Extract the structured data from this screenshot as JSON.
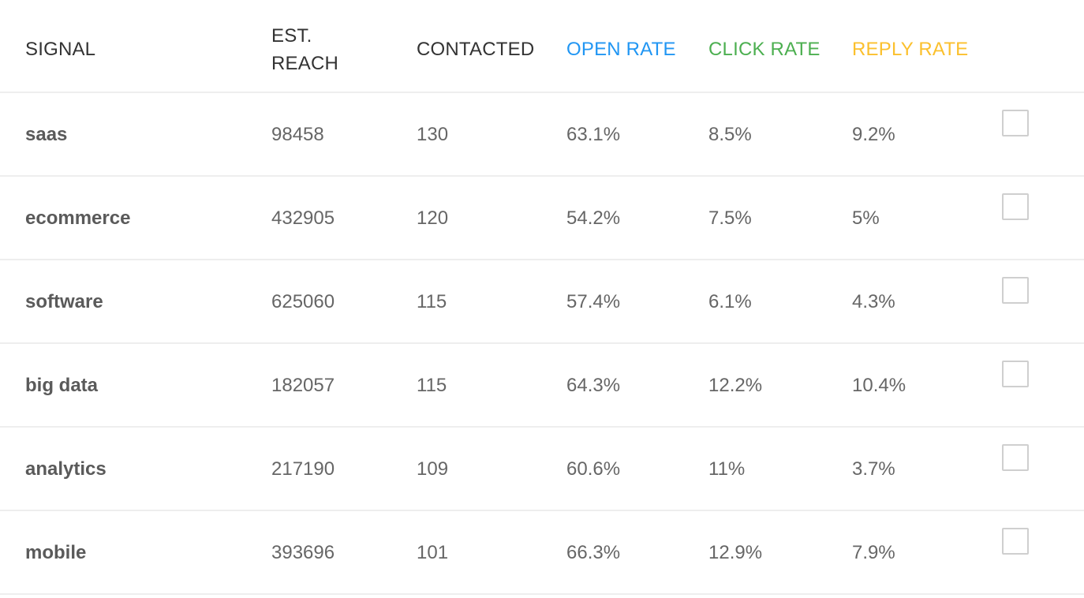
{
  "columns": {
    "signal": "SIGNAL",
    "est_reach_line1": "EST.",
    "est_reach_line2": "REACH",
    "contacted": "CONTACTED",
    "open_rate": "OPEN RATE",
    "click_rate": "CLICK RATE",
    "reply_rate": "REPLY RATE"
  },
  "colors": {
    "open_rate": "#2196f3",
    "click_rate": "#4caf50",
    "reply_rate": "#fbc02d"
  },
  "rows": [
    {
      "signal": "saas",
      "est_reach": "98458",
      "contacted": "130",
      "open_rate": "63.1%",
      "click_rate": "8.5%",
      "reply_rate": "9.2%",
      "checked": false
    },
    {
      "signal": "ecommerce",
      "est_reach": "432905",
      "contacted": "120",
      "open_rate": "54.2%",
      "click_rate": "7.5%",
      "reply_rate": "5%",
      "checked": false
    },
    {
      "signal": "software",
      "est_reach": "625060",
      "contacted": "115",
      "open_rate": "57.4%",
      "click_rate": "6.1%",
      "reply_rate": "4.3%",
      "checked": false
    },
    {
      "signal": "big data",
      "est_reach": "182057",
      "contacted": "115",
      "open_rate": "64.3%",
      "click_rate": "12.2%",
      "reply_rate": "10.4%",
      "checked": false
    },
    {
      "signal": "analytics",
      "est_reach": "217190",
      "contacted": "109",
      "open_rate": "60.6%",
      "click_rate": "11%",
      "reply_rate": "3.7%",
      "checked": false
    },
    {
      "signal": "mobile",
      "est_reach": "393696",
      "contacted": "101",
      "open_rate": "66.3%",
      "click_rate": "12.9%",
      "reply_rate": "7.9%",
      "checked": false
    }
  ]
}
